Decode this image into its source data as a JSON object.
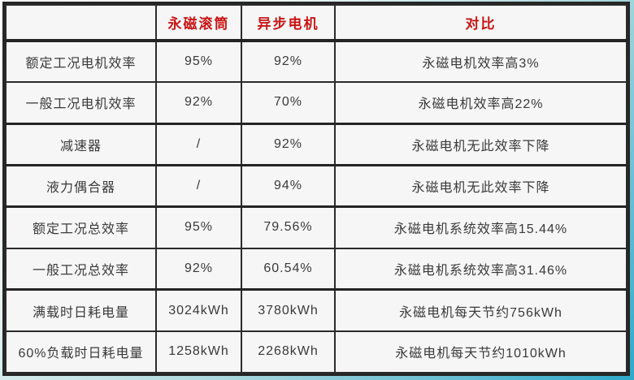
{
  "chart_data": {
    "type": "table",
    "title": "",
    "columns": [
      "",
      "永磁滚筒",
      "异步电机",
      "对比"
    ],
    "rows": [
      [
        "额定工况电机效率",
        "95%",
        "92%",
        "永磁电机效率高3%"
      ],
      [
        "一般工况电机效率",
        "92%",
        "70%",
        "永磁电机效率高22%"
      ],
      [
        "减速器",
        "/",
        "92%",
        "永磁电机无此效率下降"
      ],
      [
        "液力偶合器",
        "/",
        "94%",
        "永磁电机无此效率下降"
      ],
      [
        "额定工况总效率",
        "95%",
        "79.56%",
        "永磁电机系统效率高15.44%"
      ],
      [
        "一般工况总效率",
        "92%",
        "60.54%",
        "永磁电机系统效率高31.46%"
      ],
      [
        "满载时日耗电量",
        "3024kWh",
        "3780kWh",
        "永磁电机每天节约756kWh"
      ],
      [
        "60%负载时日耗电量",
        "1258kWh",
        "2268kWh",
        "永磁电机每天节约1010kWh"
      ]
    ],
    "layout": {
      "grid": "on",
      "header_row": true,
      "group_separator_rows": [
        3,
        4,
        5,
        7
      ]
    }
  },
  "colors": {
    "header_text": "#c81414",
    "body_text": "#3a3a3a",
    "border_dark": "#2b2b2b",
    "cell_background": "#f6f6f6",
    "frame_teal": "#2fa9ca",
    "frame_light": "#f0f8f4"
  }
}
